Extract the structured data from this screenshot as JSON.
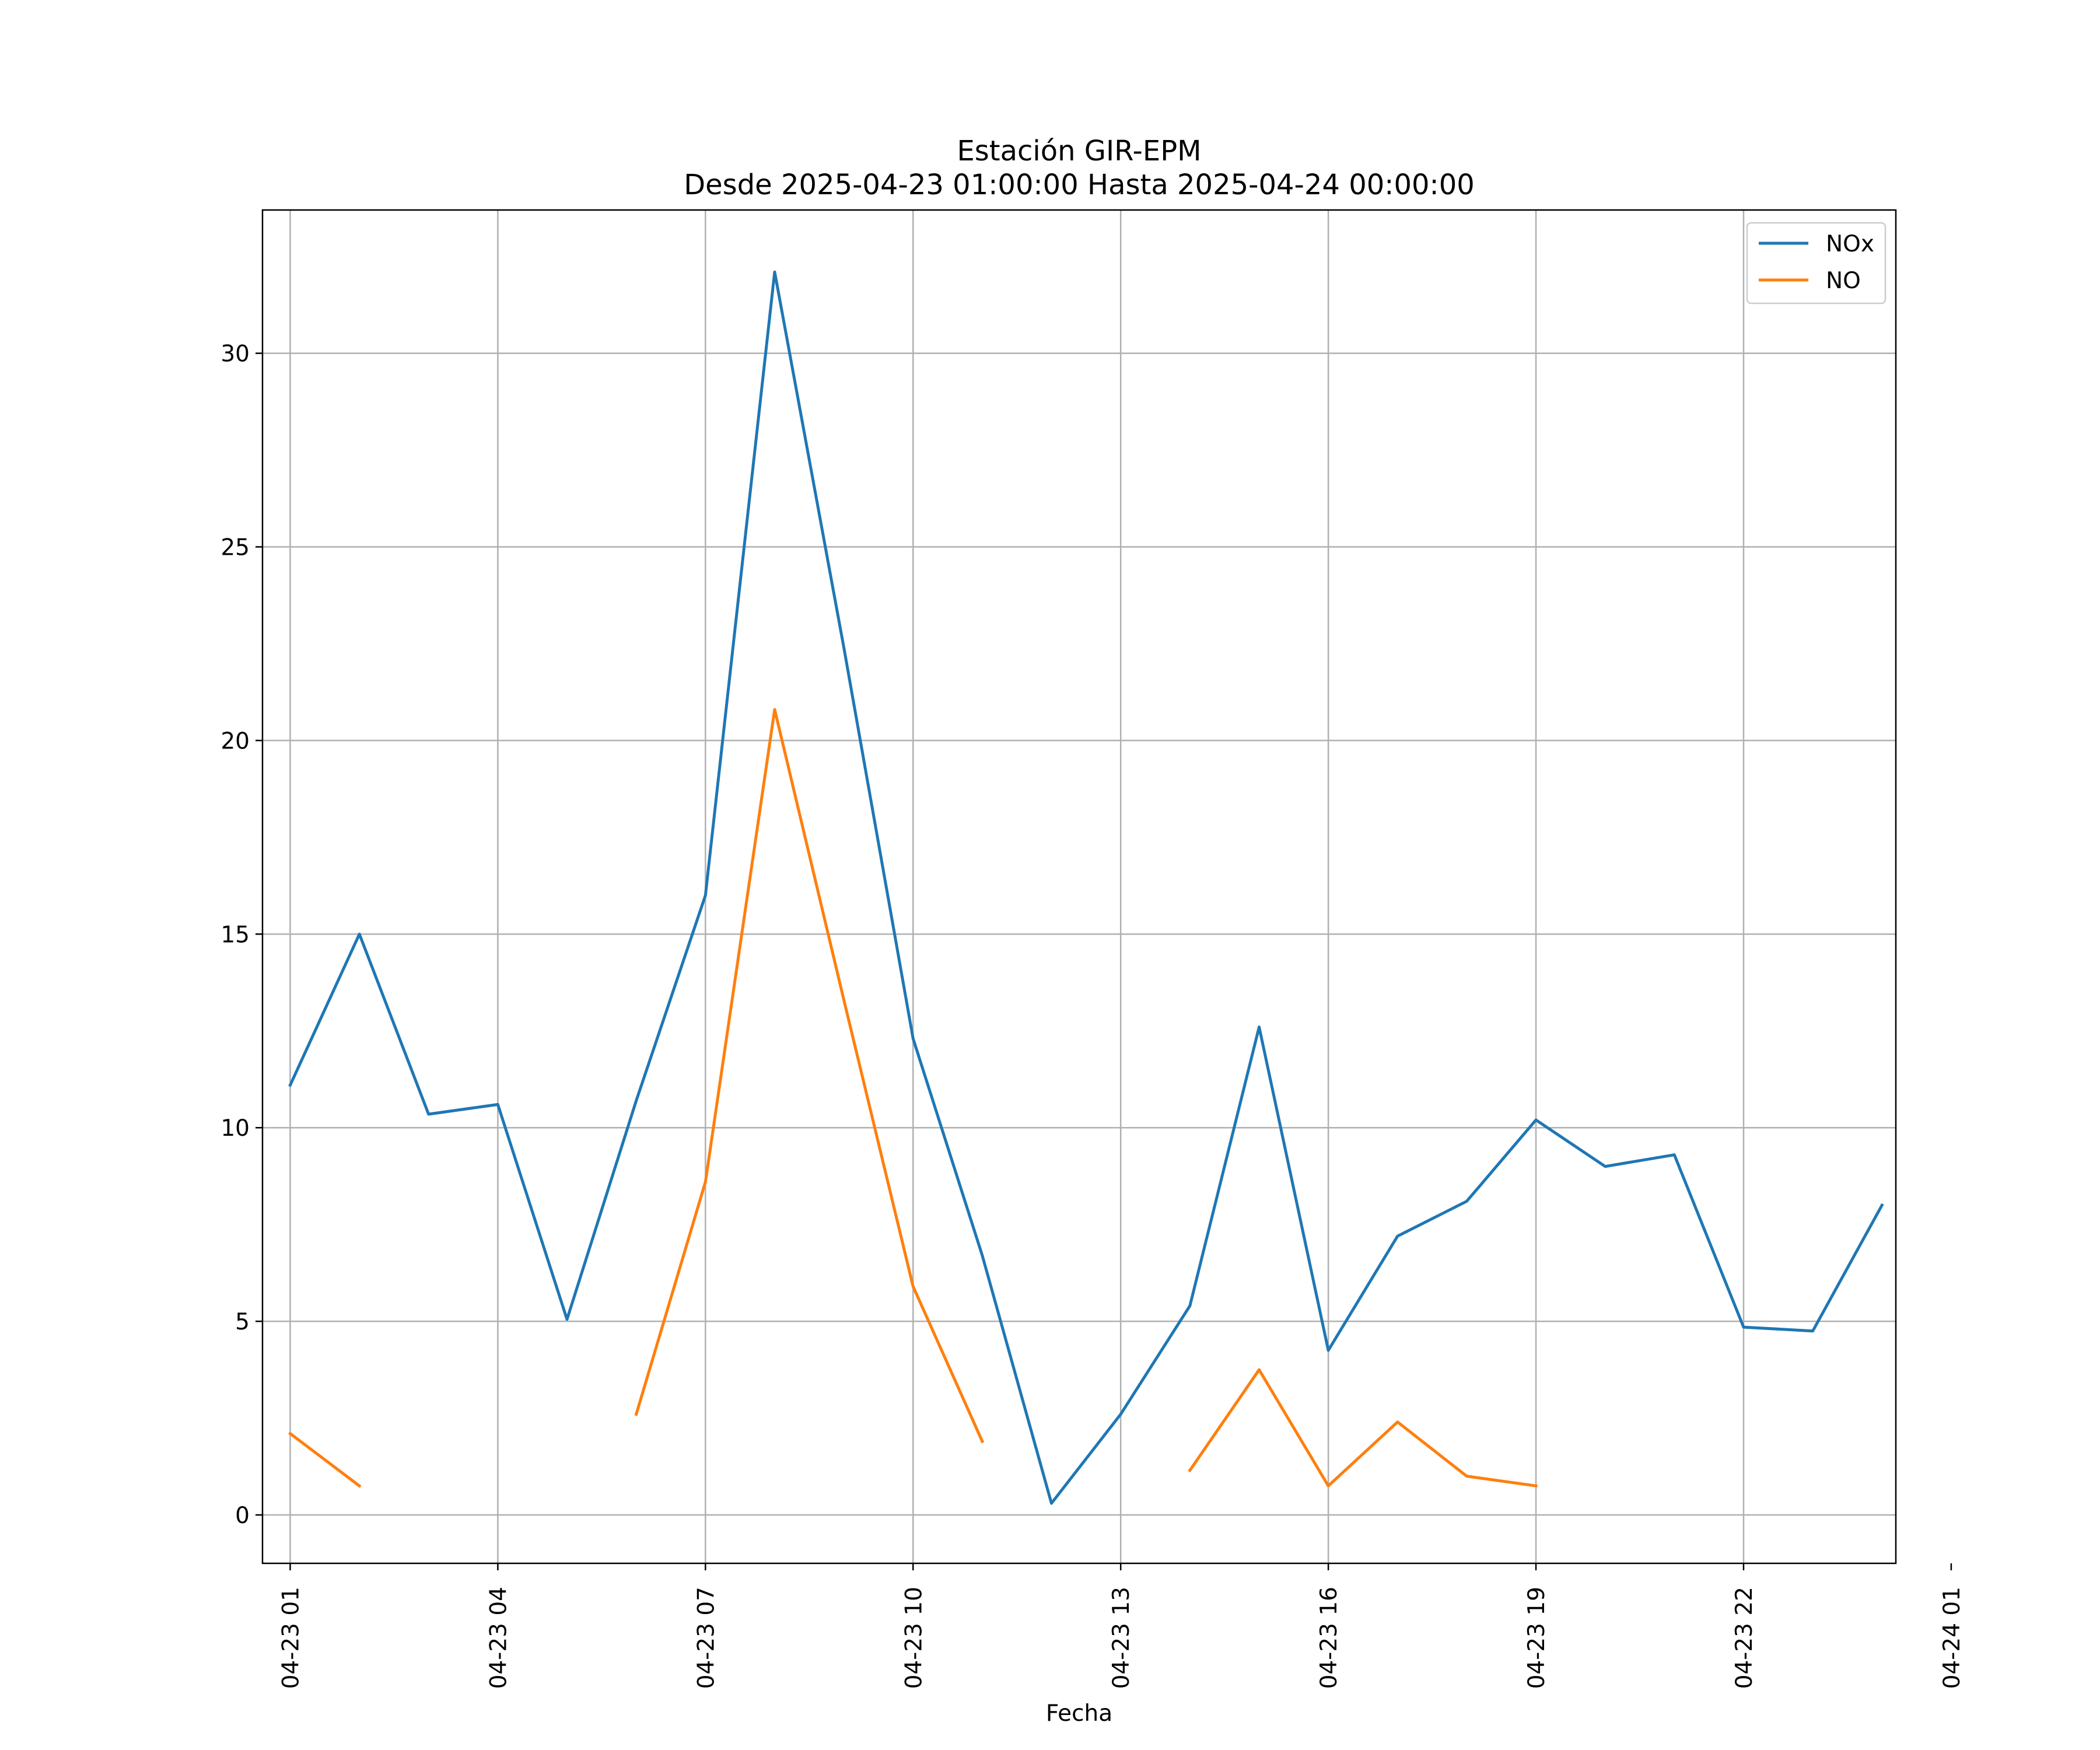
{
  "chart_data": {
    "type": "line",
    "title": "Estación GIR-EPM",
    "subtitle": "Desde 2025-04-23 01:00:00 Hasta 2025-04-24 00:00:00",
    "xlabel": "Fecha",
    "ylabel": "",
    "x_unit": "hour of 2025-04-23",
    "xlim": [
      0.6,
      24.2
    ],
    "ylim": [
      -1.25,
      33.7
    ],
    "yticks": [
      0,
      5,
      10,
      15,
      20,
      25,
      30
    ],
    "xticks": [
      {
        "hour": 1,
        "label": "04-23 01"
      },
      {
        "hour": 4,
        "label": "04-23 04"
      },
      {
        "hour": 7,
        "label": "04-23 07"
      },
      {
        "hour": 10,
        "label": "04-23 10"
      },
      {
        "hour": 13,
        "label": "04-23 13"
      },
      {
        "hour": 16,
        "label": "04-23 16"
      },
      {
        "hour": 19,
        "label": "04-23 19"
      },
      {
        "hour": 22,
        "label": "04-23 22"
      },
      {
        "hour": 25,
        "label": "04-24 01"
      }
    ],
    "grid": true,
    "legend_position": "top-right",
    "x": [
      1,
      2,
      3,
      4,
      5,
      6,
      7,
      8,
      9,
      10,
      11,
      12,
      13,
      14,
      15,
      16,
      17,
      18,
      19,
      20,
      21,
      22,
      23,
      24
    ],
    "series": [
      {
        "name": "NOx",
        "color": "#1f77b4",
        "values": [
          11.1,
          15.0,
          10.35,
          10.6,
          5.05,
          10.7,
          16.0,
          32.1,
          22.4,
          12.3,
          6.7,
          0.3,
          2.6,
          5.4,
          12.6,
          4.25,
          7.2,
          8.1,
          10.2,
          9.0,
          9.3,
          4.85,
          4.75,
          8.0
        ]
      },
      {
        "name": "NO",
        "color": "#ff7f0e",
        "values": [
          2.1,
          0.75,
          null,
          null,
          null,
          2.6,
          8.6,
          20.8,
          13.3,
          5.9,
          1.9,
          null,
          null,
          1.15,
          3.75,
          0.75,
          2.4,
          1.0,
          0.75,
          null,
          null,
          null,
          null,
          null
        ]
      }
    ]
  }
}
